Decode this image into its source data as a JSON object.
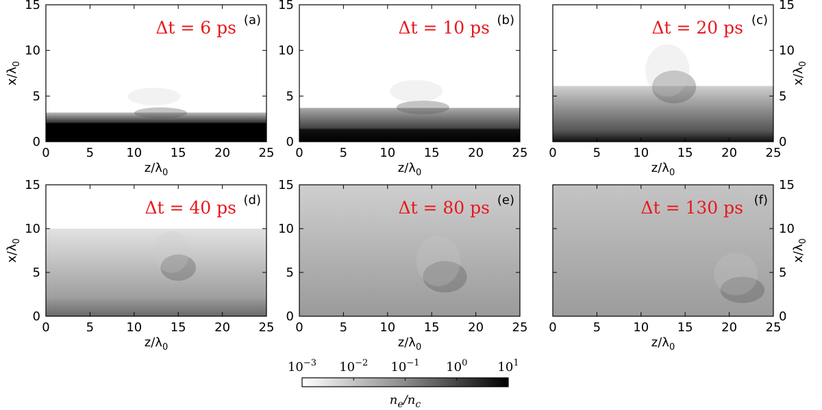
{
  "chart_data": [
    {
      "type": "image",
      "panel_label": "(a)",
      "annotation": "Δt = 6 ps",
      "xlabel": {
        "text": "z/λ",
        "subscript": "0"
      },
      "ylabel": {
        "text": "x/λ",
        "subscript": "0"
      },
      "yaxis_side": "left",
      "xlim": [
        0,
        25
      ],
      "ylim": [
        0,
        15
      ],
      "xticks": [
        0,
        5,
        10,
        15,
        20,
        25
      ],
      "yticks": [
        0,
        5,
        10,
        15
      ]
    },
    {
      "type": "image",
      "panel_label": "(b)",
      "annotation": "Δt = 10 ps",
      "xlabel": {
        "text": "z/λ",
        "subscript": "0"
      },
      "yaxis_side": "left",
      "xlim": [
        0,
        25
      ],
      "ylim": [
        0,
        15
      ],
      "xticks": [
        0,
        5,
        10,
        15,
        20,
        25
      ],
      "yticks": [
        0,
        5,
        10,
        15
      ]
    },
    {
      "type": "image",
      "panel_label": "(c)",
      "annotation": "Δt = 20 ps",
      "xlabel": {
        "text": "z/λ",
        "subscript": "0"
      },
      "ylabel": {
        "text": "x/λ",
        "subscript": "0"
      },
      "yaxis_side": "right",
      "xlim": [
        0,
        25
      ],
      "ylim": [
        0,
        15
      ],
      "xticks": [
        0,
        5,
        10,
        15,
        20,
        25
      ],
      "yticks": [
        0,
        5,
        10,
        15
      ]
    },
    {
      "type": "image",
      "panel_label": "(d)",
      "annotation": "Δt = 40 ps",
      "xlabel": {
        "text": "z/λ",
        "subscript": "0"
      },
      "ylabel": {
        "text": "x/λ",
        "subscript": "0"
      },
      "yaxis_side": "left",
      "xlim": [
        0,
        25
      ],
      "ylim": [
        0,
        15
      ],
      "xticks": [
        0,
        5,
        10,
        15,
        20,
        25
      ],
      "yticks": [
        0,
        5,
        10,
        15
      ]
    },
    {
      "type": "image",
      "panel_label": "(e)",
      "annotation": "Δt = 80 ps",
      "xlabel": {
        "text": "z/λ",
        "subscript": "0"
      },
      "yaxis_side": "left",
      "xlim": [
        0,
        25
      ],
      "ylim": [
        0,
        15
      ],
      "xticks": [
        0,
        5,
        10,
        15,
        20,
        25
      ],
      "yticks": [
        0,
        5,
        10,
        15
      ]
    },
    {
      "type": "image",
      "panel_label": "(f)",
      "annotation": "Δt = 130 ps",
      "xlabel": {
        "text": "z/λ",
        "subscript": "0"
      },
      "ylabel": {
        "text": "x/λ",
        "subscript": "0"
      },
      "yaxis_side": "right",
      "xlim": [
        0,
        25
      ],
      "ylim": [
        0,
        15
      ],
      "xticks": [
        0,
        5,
        10,
        15,
        20,
        25
      ],
      "yticks": [
        0,
        5,
        10,
        15
      ]
    },
    {
      "type": "colorbar",
      "log_scale": true,
      "label": {
        "n1": "n",
        "sub1": "e",
        "slash": "/n",
        "sub2": "c"
      },
      "lim": [
        0.001,
        10
      ],
      "ticks": [
        {
          "value": 0.001,
          "label": "10",
          "exponent": "−3"
        },
        {
          "value": 0.01,
          "label": "10",
          "exponent": "−2"
        },
        {
          "value": 0.1,
          "label": "10",
          "exponent": "−1"
        },
        {
          "value": 1,
          "label": "10",
          "exponent": "0"
        },
        {
          "value": 10,
          "label": "10",
          "exponent": "1"
        }
      ]
    }
  ]
}
